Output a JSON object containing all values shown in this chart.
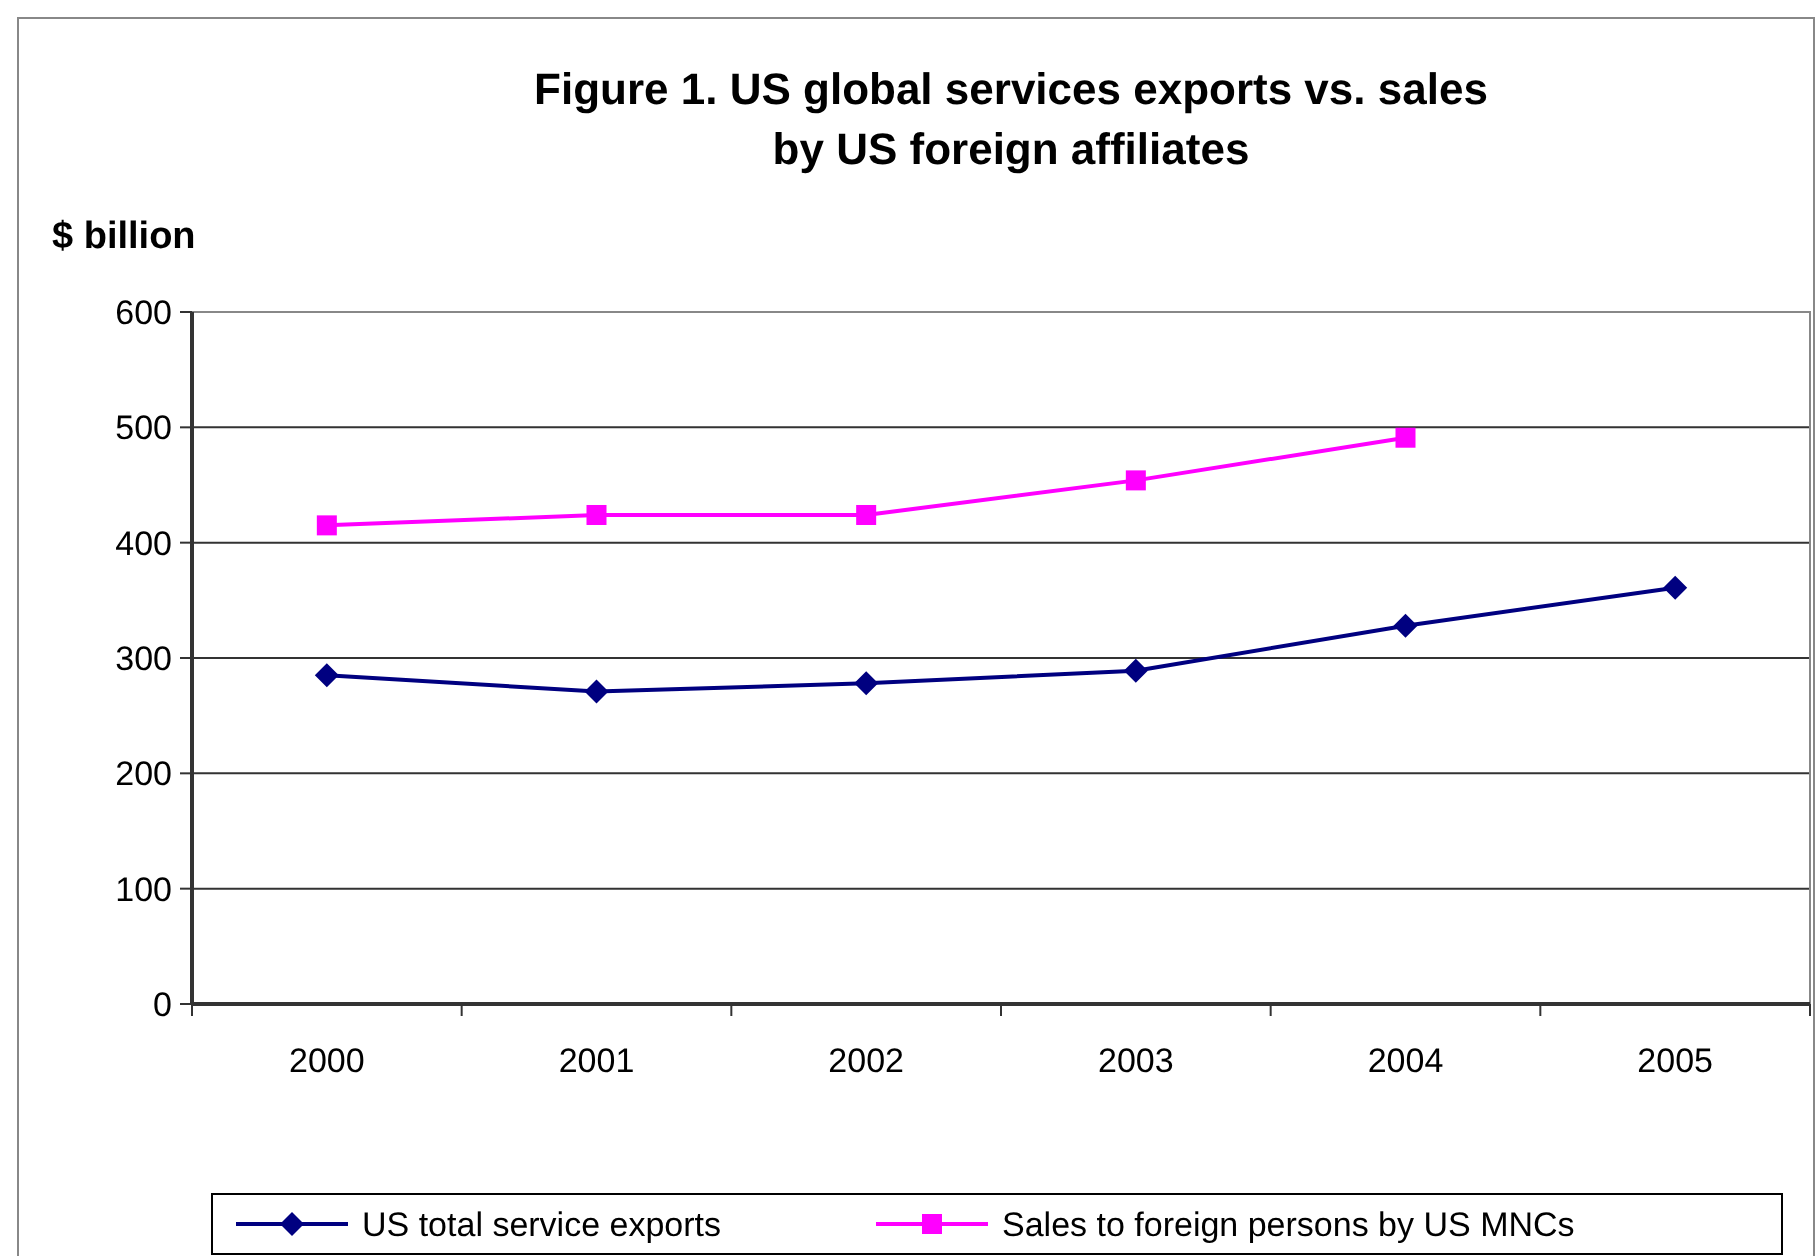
{
  "chart_data": {
    "type": "line",
    "title": "Figure 1. US global services exports vs. sales by US foreign affiliates",
    "ylabel": "$ billion",
    "categories": [
      "2000",
      "2001",
      "2002",
      "2003",
      "2004",
      "2005"
    ],
    "series": [
      {
        "name": "US total service exports",
        "color": "#000080",
        "marker": "diamond",
        "values": [
          285,
          271,
          278,
          289,
          328,
          361
        ]
      },
      {
        "name": "Sales to foreign persons by US MNCs",
        "color": "#ff00ff",
        "marker": "square",
        "values": [
          415,
          424,
          424,
          454,
          491,
          null
        ]
      }
    ],
    "ylim": [
      0,
      600
    ],
    "yticks": [
      0,
      100,
      200,
      300,
      400,
      500,
      600
    ],
    "grid": "y",
    "legend": "bottom",
    "line_style": "solid"
  }
}
